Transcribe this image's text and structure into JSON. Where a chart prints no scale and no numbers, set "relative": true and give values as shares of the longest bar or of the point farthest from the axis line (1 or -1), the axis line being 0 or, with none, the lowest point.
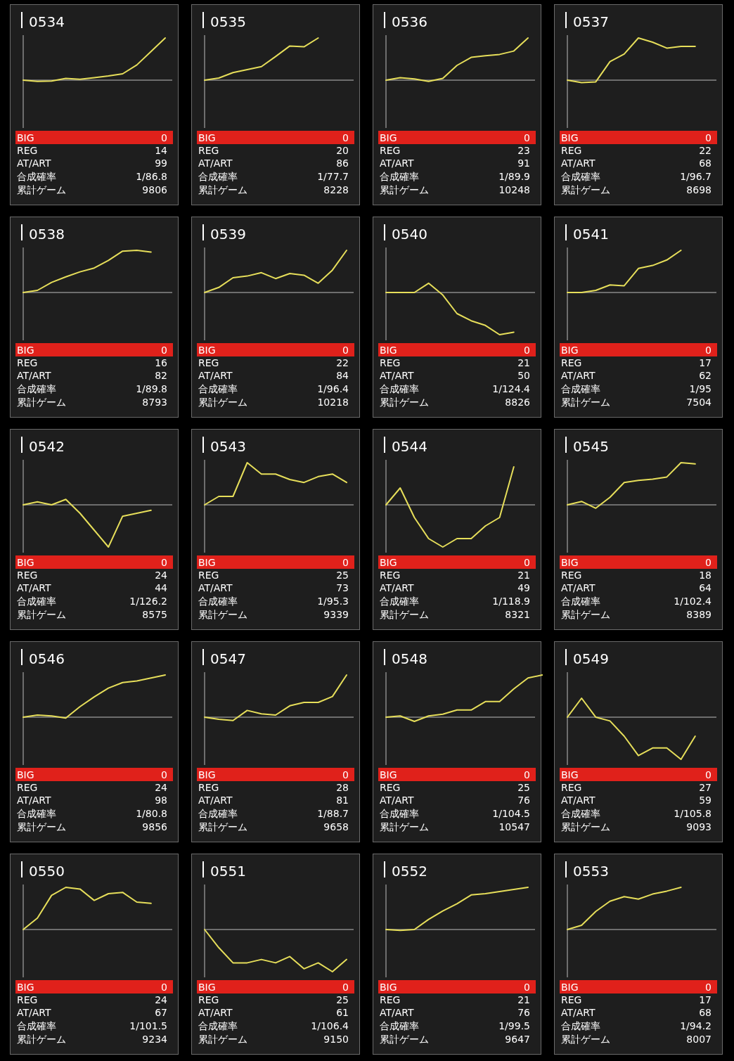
{
  "chart_data": [
    {
      "type": "line",
      "title": "0534",
      "relative": true,
      "color": "#e6de5a",
      "categories": [
        null,
        null,
        null,
        null,
        null,
        null,
        null,
        null,
        null,
        null,
        null,
        null
      ],
      "values": [
        0,
        -0.03,
        -0.02,
        0.04,
        0.02,
        0.06,
        0.1,
        0.15,
        0.36,
        0.68,
        1,
        null
      ],
      "annotations": [
        "BIG",
        "0",
        "REG",
        "14",
        "AT/ART",
        "99",
        "合成確率",
        "1/86.8",
        "累計ゲーム",
        "9806"
      ]
    },
    {
      "type": "line",
      "title": "0535",
      "relative": true,
      "color": "#e6de5a",
      "categories": [
        null,
        null,
        null,
        null,
        null,
        null,
        null,
        null,
        null,
        null,
        null,
        null
      ],
      "values": [
        0,
        0.05,
        0.18,
        0.25,
        0.32,
        0.56,
        0.81,
        0.79,
        1,
        null,
        null,
        null
      ],
      "annotations": [
        "BIG",
        "0",
        "REG",
        "20",
        "AT/ART",
        "86",
        "合成確率",
        "1/77.7",
        "累計ゲーム",
        "8228"
      ]
    },
    {
      "type": "line",
      "title": "0536",
      "relative": true,
      "color": "#e6de5a",
      "categories": [
        null,
        null,
        null,
        null,
        null,
        null,
        null,
        null,
        null,
        null,
        null,
        null
      ],
      "values": [
        0,
        0.06,
        0.03,
        -0.03,
        0.04,
        0.35,
        0.54,
        0.58,
        0.61,
        0.69,
        1,
        null
      ],
      "annotations": [
        "BIG",
        "0",
        "REG",
        "23",
        "AT/ART",
        "91",
        "合成確率",
        "1/89.9",
        "累計ゲーム",
        "10248"
      ]
    },
    {
      "type": "line",
      "title": "0537",
      "relative": true,
      "color": "#e6de5a",
      "categories": [
        null,
        null,
        null,
        null,
        null,
        null,
        null,
        null,
        null,
        null,
        null,
        null
      ],
      "values": [
        0,
        -0.06,
        -0.04,
        0.44,
        0.62,
        1,
        0.9,
        0.76,
        0.8,
        0.8,
        null,
        null
      ],
      "annotations": [
        "BIG",
        "0",
        "REG",
        "22",
        "AT/ART",
        "68",
        "合成確率",
        "1/96.7",
        "累計ゲーム",
        "8698"
      ]
    },
    {
      "type": "line",
      "title": "0538",
      "relative": true,
      "color": "#e6de5a",
      "categories": [
        null,
        null,
        null,
        null,
        null,
        null,
        null,
        null,
        null,
        null,
        null,
        null
      ],
      "values": [
        0,
        0.05,
        0.24,
        0.37,
        0.49,
        0.58,
        0.76,
        0.98,
        1,
        0.96,
        null,
        null
      ],
      "annotations": [
        "BIG",
        "0",
        "REG",
        "16",
        "AT/ART",
        "82",
        "合成確率",
        "1/89.8",
        "累計ゲーム",
        "8793"
      ]
    },
    {
      "type": "line",
      "title": "0539",
      "relative": true,
      "color": "#e6de5a",
      "categories": [
        null,
        null,
        null,
        null,
        null,
        null,
        null,
        null,
        null,
        null,
        null,
        null
      ],
      "values": [
        0,
        0.12,
        0.35,
        0.39,
        0.47,
        0.33,
        0.45,
        0.41,
        0.22,
        0.53,
        1,
        null
      ],
      "annotations": [
        "BIG",
        "0",
        "REG",
        "22",
        "AT/ART",
        "84",
        "合成確率",
        "1/96.4",
        "累計ゲーム",
        "10218"
      ]
    },
    {
      "type": "line",
      "title": "0540",
      "relative": true,
      "color": "#e6de5a",
      "categories": [
        null,
        null,
        null,
        null,
        null,
        null,
        null,
        null,
        null,
        null,
        null,
        null
      ],
      "values": [
        0,
        0,
        0,
        0.22,
        -0.06,
        -0.5,
        -0.67,
        -0.78,
        -1,
        -0.94,
        null,
        null
      ],
      "annotations": [
        "BIG",
        "0",
        "REG",
        "21",
        "AT/ART",
        "50",
        "合成確率",
        "1/124.4",
        "累計ゲーム",
        "8826"
      ]
    },
    {
      "type": "line",
      "title": "0541",
      "relative": true,
      "color": "#e6de5a",
      "categories": [
        null,
        null,
        null,
        null,
        null,
        null,
        null,
        null,
        null,
        null,
        null,
        null
      ],
      "values": [
        0,
        0,
        0.05,
        0.18,
        0.16,
        0.57,
        0.64,
        0.77,
        1,
        null,
        null,
        null
      ],
      "annotations": [
        "BIG",
        "0",
        "REG",
        "17",
        "AT/ART",
        "62",
        "合成確率",
        "1/95",
        "累計ゲーム",
        "7504"
      ]
    },
    {
      "type": "line",
      "title": "0542",
      "relative": true,
      "color": "#e6de5a",
      "categories": [
        null,
        null,
        null,
        null,
        null,
        null,
        null,
        null,
        null,
        null,
        null,
        null
      ],
      "values": [
        0,
        0.07,
        0,
        0.13,
        -0.2,
        -0.6,
        -1,
        -0.27,
        -0.2,
        -0.13,
        null,
        null
      ],
      "annotations": [
        "BIG",
        "0",
        "REG",
        "24",
        "AT/ART",
        "44",
        "合成確率",
        "1/126.2",
        "累計ゲーム",
        "8575"
      ]
    },
    {
      "type": "line",
      "title": "0543",
      "relative": true,
      "color": "#e6de5a",
      "categories": [
        null,
        null,
        null,
        null,
        null,
        null,
        null,
        null,
        null,
        null,
        null,
        null
      ],
      "values": [
        0,
        0.2,
        0.2,
        1,
        0.73,
        0.73,
        0.6,
        0.53,
        0.67,
        0.73,
        0.53,
        null
      ],
      "annotations": [
        "BIG",
        "0",
        "REG",
        "25",
        "AT/ART",
        "73",
        "合成確率",
        "1/95.3",
        "累計ゲーム",
        "9339"
      ]
    },
    {
      "type": "line",
      "title": "0544",
      "relative": true,
      "color": "#e6de5a",
      "categories": [
        null,
        null,
        null,
        null,
        null,
        null,
        null,
        null,
        null,
        null,
        null,
        null
      ],
      "values": [
        0,
        0.4,
        -0.3,
        -0.8,
        -1,
        -0.8,
        -0.8,
        -0.5,
        -0.3,
        0.9,
        null,
        null
      ],
      "annotations": [
        "BIG",
        "0",
        "REG",
        "21",
        "AT/ART",
        "49",
        "合成確率",
        "1/118.9",
        "累計ゲーム",
        "8321"
      ]
    },
    {
      "type": "line",
      "title": "0545",
      "relative": true,
      "color": "#e6de5a",
      "categories": [
        null,
        null,
        null,
        null,
        null,
        null,
        null,
        null,
        null,
        null,
        null,
        null
      ],
      "values": [
        0,
        0.08,
        -0.08,
        0.18,
        0.53,
        0.58,
        0.61,
        0.66,
        1,
        0.97,
        null,
        null
      ],
      "annotations": [
        "BIG",
        "0",
        "REG",
        "18",
        "AT/ART",
        "64",
        "合成確率",
        "1/102.4",
        "累計ゲーム",
        "8389"
      ]
    },
    {
      "type": "line",
      "title": "0546",
      "relative": true,
      "color": "#e6de5a",
      "categories": [
        null,
        null,
        null,
        null,
        null,
        null,
        null,
        null,
        null,
        null,
        null,
        null
      ],
      "values": [
        0,
        0.05,
        0.03,
        -0.02,
        0.25,
        0.48,
        0.69,
        0.82,
        0.86,
        0.93,
        1,
        null
      ],
      "annotations": [
        "BIG",
        "0",
        "REG",
        "24",
        "AT/ART",
        "98",
        "合成確率",
        "1/80.8",
        "累計ゲーム",
        "9856"
      ]
    },
    {
      "type": "line",
      "title": "0547",
      "relative": true,
      "color": "#e6de5a",
      "categories": [
        null,
        null,
        null,
        null,
        null,
        null,
        null,
        null,
        null,
        null,
        null,
        null
      ],
      "values": [
        0,
        -0.05,
        -0.08,
        0.16,
        0.08,
        0.05,
        0.27,
        0.35,
        0.35,
        0.49,
        1,
        null
      ],
      "annotations": [
        "BIG",
        "0",
        "REG",
        "28",
        "AT/ART",
        "81",
        "合成確率",
        "1/88.7",
        "累計ゲーム",
        "9658"
      ]
    },
    {
      "type": "line",
      "title": "0548",
      "relative": true,
      "color": "#e6de5a",
      "categories": [
        null,
        null,
        null,
        null,
        null,
        null,
        null,
        null,
        null,
        null,
        null,
        null
      ],
      "values": [
        0,
        0.03,
        -0.1,
        0.03,
        0.07,
        0.17,
        0.17,
        0.37,
        0.37,
        0.67,
        0.93,
        1
      ],
      "annotations": [
        "BIG",
        "0",
        "REG",
        "25",
        "AT/ART",
        "76",
        "合成確率",
        "1/104.5",
        "累計ゲーム",
        "10547"
      ]
    },
    {
      "type": "line",
      "title": "0549",
      "relative": true,
      "color": "#e6de5a",
      "categories": [
        null,
        null,
        null,
        null,
        null,
        null,
        null,
        null,
        null,
        null,
        null,
        null
      ],
      "values": [
        0,
        0.45,
        0,
        -0.09,
        -0.45,
        -0.91,
        -0.73,
        -0.73,
        -1,
        -0.45,
        null,
        null
      ],
      "annotations": [
        "BIG",
        "0",
        "REG",
        "27",
        "AT/ART",
        "59",
        "合成確率",
        "1/105.8",
        "累計ゲーム",
        "9093"
      ]
    },
    {
      "type": "line",
      "title": "0550",
      "relative": true,
      "color": "#e6de5a",
      "categories": [
        null,
        null,
        null,
        null,
        null,
        null,
        null,
        null,
        null,
        null,
        null,
        null
      ],
      "values": [
        0,
        0.27,
        0.81,
        1,
        0.96,
        0.69,
        0.85,
        0.88,
        0.65,
        0.62,
        null,
        null
      ],
      "annotations": [
        "BIG",
        "0",
        "REG",
        "24",
        "AT/ART",
        "67",
        "合成確率",
        "1/101.5",
        "累計ゲーム",
        "9234"
      ]
    },
    {
      "type": "line",
      "title": "0551",
      "relative": true,
      "color": "#e6de5a",
      "categories": [
        null,
        null,
        null,
        null,
        null,
        null,
        null,
        null,
        null,
        null,
        null,
        null
      ],
      "values": [
        0,
        -0.43,
        -0.79,
        -0.79,
        -0.71,
        -0.79,
        -0.64,
        -0.93,
        -0.79,
        -1,
        -0.71,
        null
      ],
      "annotations": [
        "BIG",
        "0",
        "REG",
        "25",
        "AT/ART",
        "61",
        "合成確率",
        "1/106.4",
        "累計ゲーム",
        "9150"
      ]
    },
    {
      "type": "line",
      "title": "0552",
      "relative": true,
      "color": "#e6de5a",
      "categories": [
        null,
        null,
        null,
        null,
        null,
        null,
        null,
        null,
        null,
        null,
        null,
        null
      ],
      "values": [
        0,
        -0.02,
        0,
        0.24,
        0.44,
        0.61,
        0.82,
        0.85,
        0.9,
        0.95,
        1,
        null
      ],
      "annotations": [
        "BIG",
        "0",
        "REG",
        "21",
        "AT/ART",
        "76",
        "合成確率",
        "1/99.5",
        "累計ゲーム",
        "9647"
      ]
    },
    {
      "type": "line",
      "title": "0553",
      "relative": true,
      "color": "#e6de5a",
      "categories": [
        null,
        null,
        null,
        null,
        null,
        null,
        null,
        null,
        null,
        null,
        null,
        null
      ],
      "values": [
        0,
        0.1,
        0.43,
        0.67,
        0.78,
        0.72,
        0.84,
        0.91,
        1,
        null,
        null,
        null
      ],
      "annotations": [
        "BIG",
        "0",
        "REG",
        "17",
        "AT/ART",
        "68",
        "合成確率",
        "1/94.2",
        "累計ゲーム",
        "8007"
      ]
    }
  ]
}
